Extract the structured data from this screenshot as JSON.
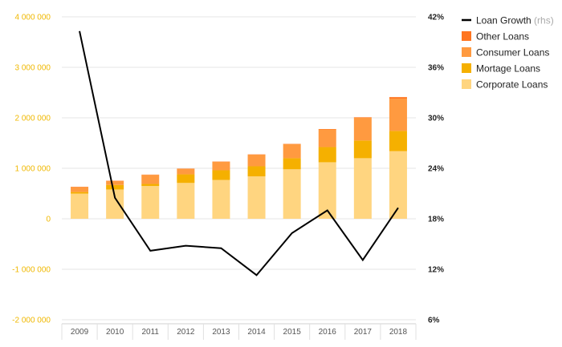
{
  "chart_data": {
    "type": "bar",
    "stacked": true,
    "categories": [
      "2009",
      "2010",
      "2011",
      "2012",
      "2013",
      "2014",
      "2015",
      "2016",
      "2017",
      "2018"
    ],
    "series": [
      {
        "name": "Corporate Loans",
        "color": "#ffd580",
        "axis": "left",
        "values": [
          500000,
          580000,
          650000,
          710000,
          770000,
          840000,
          980000,
          1120000,
          1200000,
          1340000
        ]
      },
      {
        "name": "Mortage Loans",
        "color": "#f5b000",
        "axis": "left",
        "values": [
          30000,
          90000,
          40000,
          170000,
          190000,
          200000,
          220000,
          300000,
          350000,
          400000
        ]
      },
      {
        "name": "Consumer Loans",
        "color": "#ff9a40",
        "axis": "left",
        "values": [
          100000,
          80000,
          180000,
          110000,
          170000,
          230000,
          280000,
          350000,
          450000,
          640000
        ]
      },
      {
        "name": "Other Loans",
        "color": "#ff7520",
        "axis": "left",
        "values": [
          5000,
          5000,
          5000,
          5000,
          5000,
          5000,
          5000,
          8000,
          10000,
          30000
        ]
      },
      {
        "name": "Loan Growth",
        "name_suffix": "(rhs)",
        "type": "line",
        "color": "#000000",
        "axis": "right",
        "values": [
          40.3,
          20.5,
          14.2,
          14.8,
          14.5,
          11.3,
          16.3,
          19.0,
          13.1,
          19.3
        ]
      }
    ],
    "y_left": {
      "lim": [
        -2000000,
        4000000
      ],
      "ticks": [
        4000000,
        3000000,
        2000000,
        1000000,
        0,
        -1000000,
        -2000000
      ],
      "tick_labels": [
        "4 000 000",
        "3 000 000",
        "2 000 000",
        "1 000 000",
        "0",
        "-1 000 000",
        "-2 000 000"
      ]
    },
    "y_right": {
      "lim": [
        6,
        42
      ],
      "ticks": [
        42,
        36,
        30,
        24,
        18,
        12,
        6
      ],
      "tick_labels": [
        "42%",
        "36%",
        "30%",
        "24%",
        "18%",
        "12%",
        "6%"
      ]
    },
    "legend": {
      "position": "top-right",
      "entries": [
        {
          "label": "Loan Growth",
          "suffix": "(rhs)",
          "kind": "line",
          "color": "#000000"
        },
        {
          "label": "Other Loans",
          "kind": "box",
          "color": "#ff7520"
        },
        {
          "label": "Consumer Loans",
          "kind": "box",
          "color": "#ff9a40"
        },
        {
          "label": "Mortage Loans",
          "kind": "box",
          "color": "#f5b000"
        },
        {
          "label": "Corporate Loans",
          "kind": "box",
          "color": "#ffd580"
        }
      ]
    },
    "grid": true,
    "title": "",
    "xlabel": "",
    "ylabel": ""
  }
}
